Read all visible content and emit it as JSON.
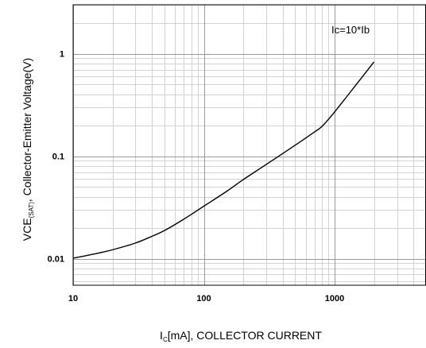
{
  "chart_data": {
    "type": "line",
    "x_scale": "log",
    "y_scale": "log",
    "xlim": [
      10,
      5000
    ],
    "ylim": [
      0.0055,
      3
    ],
    "grid": true,
    "x_ticks": [
      {
        "value": 10,
        "label": "10"
      },
      {
        "value": 100,
        "label": "100"
      },
      {
        "value": 1000,
        "label": "1000"
      }
    ],
    "y_ticks": [
      {
        "value": 0.01,
        "label": "0.01"
      },
      {
        "value": 0.1,
        "label": "0.1"
      },
      {
        "value": 1,
        "label": "1"
      }
    ],
    "xlabel": {
      "prefix": "I",
      "sub": "C",
      "suffix": "[mA], COLLECTOR CURRENT"
    },
    "ylabel": {
      "prefix": "VCE",
      "sub": "(SAT)",
      "suffix": ",  Collector-Emitter Voltage(V)"
    },
    "annotation": "Ic=10*Ib",
    "series": [
      {
        "color": "#000000",
        "points": [
          [
            10,
            0.0101
          ],
          [
            15,
            0.0112
          ],
          [
            20,
            0.0122
          ],
          [
            30,
            0.0142
          ],
          [
            40,
            0.0165
          ],
          [
            50,
            0.0188
          ],
          [
            70,
            0.0242
          ],
          [
            100,
            0.0325
          ],
          [
            150,
            0.0455
          ],
          [
            200,
            0.059
          ],
          [
            300,
            0.083
          ],
          [
            500,
            0.128
          ],
          [
            700,
            0.172
          ],
          [
            800,
            0.195
          ],
          [
            1000,
            0.27
          ],
          [
            1500,
            0.52
          ],
          [
            2000,
            0.83
          ]
        ]
      }
    ]
  }
}
